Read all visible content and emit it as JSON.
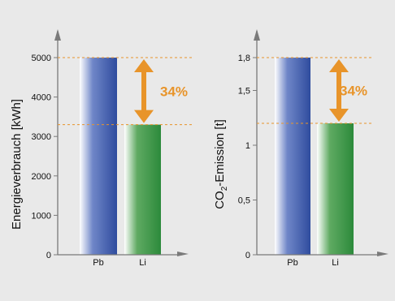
{
  "colors": {
    "background": "#e9e9e9",
    "axis": "#7a7a7a",
    "bar_pb": "#3050a0",
    "bar_li": "#2e8b3c",
    "arrow": "#e8942a",
    "guide": "#e8942a",
    "text": "#111111"
  },
  "chart_data": [
    {
      "type": "bar",
      "categories": [
        "Pb",
        "Li"
      ],
      "values": [
        5000,
        3300
      ],
      "ylabel": "Energieverbrauch [kWh]",
      "ylim": [
        0,
        5000
      ],
      "yticks": [
        0,
        1000,
        2000,
        3000,
        4000,
        5000
      ],
      "ytick_labels": [
        "0",
        "1000",
        "2000",
        "3000",
        "4000",
        "5000"
      ],
      "annotation": "34%",
      "grid": false
    },
    {
      "type": "bar",
      "categories": [
        "Pb",
        "Li"
      ],
      "values": [
        1.8,
        1.2
      ],
      "ylabel_main": "CO",
      "ylabel_sub": "2",
      "ylabel_rest": "-Emission [t]",
      "ylim": [
        0,
        1.8
      ],
      "yticks": [
        0,
        0.5,
        1,
        1.5,
        1.8
      ],
      "ytick_labels": [
        "0",
        "0,5",
        "1",
        "1,5",
        "1,8"
      ],
      "annotation": "34%",
      "grid": false
    }
  ]
}
